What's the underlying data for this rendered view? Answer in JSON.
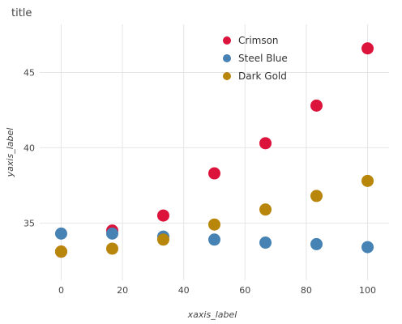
{
  "chart_data": {
    "type": "scatter",
    "title": "title",
    "xlabel": "xaxis_label",
    "ylabel": "yaxis_label",
    "xlim": [
      -7,
      107
    ],
    "ylim": [
      31.2,
      48.2
    ],
    "x_ticks": [
      0,
      20,
      40,
      60,
      80,
      100
    ],
    "y_ticks": [
      35,
      40,
      45
    ],
    "grid": true,
    "legend": {
      "placement": "top-right"
    },
    "x": [
      0,
      16.67,
      33.33,
      50,
      66.67,
      83.33,
      100
    ],
    "series": [
      {
        "name": "Crimson",
        "color": "#dc143c",
        "values": [
          33.1,
          34.5,
          35.5,
          38.3,
          40.3,
          42.8,
          46.6
        ]
      },
      {
        "name": "Steel Blue",
        "color": "#4682b4",
        "values": [
          34.3,
          34.3,
          34.1,
          33.9,
          33.7,
          33.6,
          33.4
        ]
      },
      {
        "name": "Dark Gold",
        "color": "#b8860b",
        "values": [
          33.1,
          33.3,
          33.9,
          34.9,
          35.9,
          36.8,
          37.8
        ]
      }
    ]
  }
}
